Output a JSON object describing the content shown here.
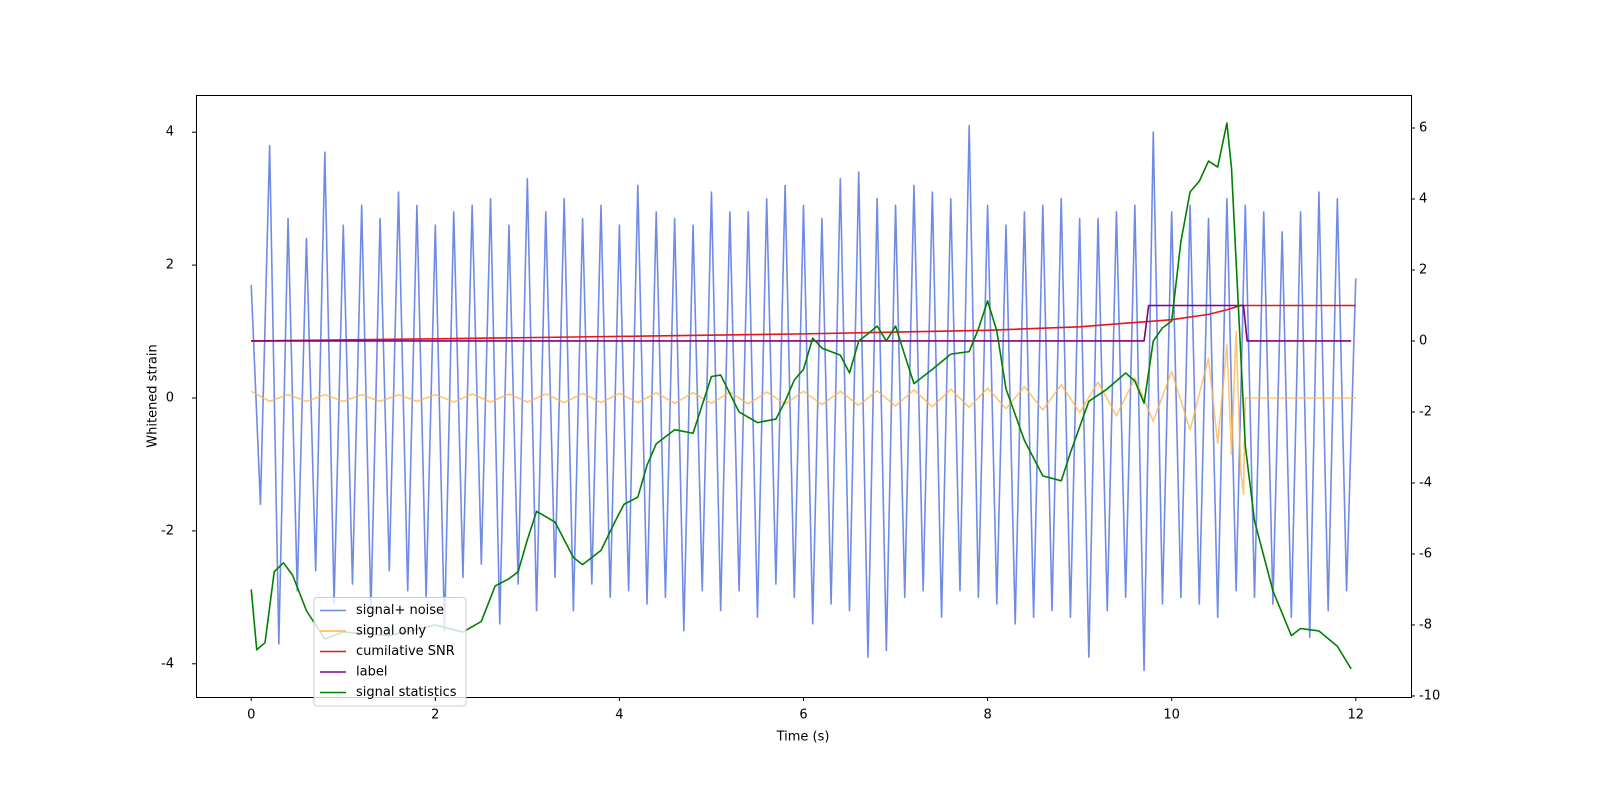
{
  "chart_data": {
    "type": "line",
    "xlabel": "Time (s)",
    "ylabel": "Whitened strain",
    "xlim": [
      -0.6,
      12.6
    ],
    "ylim": [
      -4.5,
      4.56
    ],
    "y2lim": [
      -10.03,
      6.93
    ],
    "xticks": [
      0,
      2,
      4,
      6,
      8,
      10,
      12
    ],
    "yticks": [
      -4,
      -2,
      0,
      2,
      4
    ],
    "y2ticks": [
      -10,
      -8,
      -6,
      -4,
      -2,
      0,
      2,
      4,
      6
    ],
    "legend": "lower left",
    "series": [
      {
        "name": "signal+ noise",
        "color": "#6f8be6",
        "axis": "y",
        "x": [
          0,
          0.1,
          0.2,
          0.3,
          0.4,
          0.5,
          0.6,
          0.7,
          0.8,
          0.9,
          1,
          1.1,
          1.2,
          1.3,
          1.4,
          1.5,
          1.6,
          1.7,
          1.8,
          1.9,
          2,
          2.1,
          2.2,
          2.3,
          2.4,
          2.5,
          2.6,
          2.7,
          2.8,
          2.9,
          3,
          3.1,
          3.2,
          3.3,
          3.4,
          3.5,
          3.6,
          3.7,
          3.8,
          3.9,
          4,
          4.1,
          4.2,
          4.3,
          4.4,
          4.5,
          4.6,
          4.7,
          4.8,
          4.9,
          5,
          5.1,
          5.2,
          5.3,
          5.4,
          5.5,
          5.6,
          5.7,
          5.8,
          5.9,
          6,
          6.1,
          6.2,
          6.3,
          6.4,
          6.5,
          6.6,
          6.7,
          6.8,
          6.9,
          7,
          7.1,
          7.2,
          7.3,
          7.4,
          7.5,
          7.6,
          7.7,
          7.8,
          7.9,
          8,
          8.1,
          8.2,
          8.3,
          8.4,
          8.5,
          8.6,
          8.7,
          8.8,
          8.9,
          9,
          9.1,
          9.2,
          9.3,
          9.4,
          9.5,
          9.6,
          9.7,
          9.8,
          9.9,
          10,
          10.1,
          10.2,
          10.3,
          10.4,
          10.5,
          10.6,
          10.7,
          10.8,
          10.9,
          11,
          11.1,
          11.2,
          11.3,
          11.4,
          11.5,
          11.6,
          11.7,
          11.8,
          11.9,
          12
        ],
        "values": [
          1.7,
          -1.6,
          3.8,
          -3.7,
          2.7,
          -2.9,
          2.4,
          -2.6,
          3.7,
          -3.1,
          2.6,
          -2.8,
          2.9,
          -3.2,
          2.7,
          -2.6,
          3.1,
          -2.9,
          2.9,
          -3.0,
          2.6,
          -3.5,
          2.8,
          -2.7,
          2.9,
          -2.5,
          3.0,
          -3.4,
          2.6,
          -2.8,
          3.3,
          -3.2,
          2.8,
          -2.7,
          3.0,
          -3.2,
          2.7,
          -2.8,
          2.9,
          -3.0,
          2.6,
          -2.9,
          3.2,
          -3.1,
          2.8,
          -3.0,
          2.7,
          -3.5,
          2.6,
          -2.9,
          3.1,
          -3.2,
          2.8,
          -2.9,
          2.8,
          -3.3,
          3.0,
          -2.8,
          3.2,
          -3.0,
          2.9,
          -3.4,
          2.7,
          -3.1,
          3.3,
          -3.2,
          3.4,
          -3.9,
          3.0,
          -3.8,
          2.9,
          -3.0,
          3.2,
          -2.9,
          3.1,
          -3.3,
          3.0,
          -2.9,
          4.1,
          -3.0,
          2.9,
          -3.1,
          2.6,
          -3.4,
          2.8,
          -3.3,
          2.9,
          -3.2,
          3.0,
          -3.3,
          2.7,
          -3.9,
          2.7,
          -3.2,
          2.8,
          -3.0,
          2.9,
          -4.1,
          4.0,
          -3.1,
          2.8,
          -3.0,
          2.9,
          -3.1,
          2.7,
          -3.3,
          3.0,
          -2.9,
          2.9,
          -3.0,
          2.8,
          -3.1,
          2.5,
          -3.3,
          2.8,
          -3.6,
          3.1,
          -3.2,
          3.0,
          -2.9,
          1.8
        ]
      },
      {
        "name": "signal only",
        "color": "#ffb347",
        "axis": "y",
        "x": [
          0,
          0.2,
          0.4,
          0.6,
          0.8,
          1,
          1.2,
          1.4,
          1.6,
          1.8,
          2,
          2.2,
          2.4,
          2.6,
          2.8,
          3,
          3.2,
          3.4,
          3.6,
          3.8,
          4,
          4.2,
          4.4,
          4.6,
          4.8,
          5,
          5.2,
          5.4,
          5.6,
          5.8,
          6,
          6.2,
          6.4,
          6.6,
          6.8,
          7,
          7.2,
          7.4,
          7.6,
          7.8,
          8,
          8.2,
          8.4,
          8.6,
          8.8,
          9,
          9.2,
          9.4,
          9.6,
          9.8,
          10,
          10.2,
          10.4,
          10.5,
          10.6,
          10.65,
          10.7,
          10.75,
          10.78,
          10.8,
          12
        ],
        "values": [
          0.1,
          -0.05,
          0.05,
          -0.05,
          0.05,
          -0.05,
          0.05,
          -0.05,
          0.05,
          -0.05,
          0.05,
          -0.06,
          0.06,
          -0.06,
          0.06,
          -0.06,
          0.06,
          -0.07,
          0.07,
          -0.07,
          0.07,
          -0.07,
          0.08,
          -0.08,
          0.08,
          -0.08,
          0.09,
          -0.09,
          0.09,
          -0.09,
          0.1,
          -0.1,
          0.1,
          -0.11,
          0.11,
          -0.12,
          0.12,
          -0.13,
          0.13,
          -0.14,
          0.15,
          -0.16,
          0.17,
          -0.18,
          0.2,
          -0.22,
          0.24,
          -0.27,
          0.3,
          -0.35,
          0.4,
          -0.48,
          0.6,
          -0.68,
          0.8,
          -0.85,
          1.0,
          -1.1,
          -1.45,
          0,
          0
        ]
      },
      {
        "name": "cumilative SNR",
        "color": "#e8141a",
        "axis": "y2",
        "x": [
          0,
          2,
          4,
          6,
          8,
          9,
          9.5,
          10,
          10.4,
          10.6,
          10.75,
          12
        ],
        "values": [
          0,
          0.06,
          0.13,
          0.2,
          0.3,
          0.4,
          0.5,
          0.6,
          0.75,
          0.88,
          1,
          1
        ]
      },
      {
        "name": "label",
        "color": "#800080",
        "axis": "y2",
        "x": [
          0,
          9.7,
          9.75,
          10.78,
          10.82,
          11.95
        ],
        "values": [
          0,
          0,
          1,
          1,
          0,
          0
        ]
      },
      {
        "name": "signal statistics",
        "color": "#008000",
        "axis": "y2",
        "x": [
          0,
          0.06,
          0.15,
          0.25,
          0.35,
          0.45,
          0.6,
          0.8,
          1,
          1.5,
          2,
          2.3,
          2.5,
          2.65,
          2.8,
          2.9,
          3,
          3.1,
          3.3,
          3.5,
          3.6,
          3.8,
          3.95,
          4.05,
          4.2,
          4.3,
          4.4,
          4.6,
          4.8,
          4.9,
          5,
          5.1,
          5.3,
          5.5,
          5.7,
          5.8,
          5.9,
          6,
          6.1,
          6.2,
          6.4,
          6.5,
          6.6,
          6.7,
          6.8,
          6.9,
          7,
          7.1,
          7.2,
          7.4,
          7.6,
          7.8,
          7.9,
          8,
          8.1,
          8.2,
          8.4,
          8.6,
          8.8,
          8.9,
          9.1,
          9.3,
          9.5,
          9.6,
          9.7,
          9.8,
          9.9,
          10,
          10.1,
          10.2,
          10.3,
          10.4,
          10.5,
          10.6,
          10.65,
          10.7,
          10.8,
          10.9,
          11.1,
          11.3,
          11.4,
          11.6,
          11.8,
          11.95
        ],
        "values": [
          -7,
          -8.7,
          -8.5,
          -6.5,
          -6.25,
          -6.6,
          -7.6,
          -8.4,
          -8.2,
          -8.3,
          -8,
          -8.2,
          -7.9,
          -6.9,
          -6.7,
          -6.5,
          -5.6,
          -4.8,
          -5.1,
          -6.1,
          -6.3,
          -5.9,
          -5.1,
          -4.6,
          -4.4,
          -3.5,
          -2.9,
          -2.5,
          -2.6,
          -1.8,
          -1,
          -0.96,
          -2,
          -2.3,
          -2.2,
          -1.7,
          -1.1,
          -0.8,
          0.08,
          -0.2,
          -0.4,
          -0.9,
          0,
          0.2,
          0.42,
          0,
          0.42,
          -0.4,
          -1.2,
          -0.8,
          -0.37,
          -0.3,
          0.34,
          1.13,
          0.28,
          -1.35,
          -2.8,
          -3.8,
          -3.94,
          -3.15,
          -1.7,
          -1.35,
          -0.9,
          -1.13,
          -1.75,
          0,
          0.37,
          0.56,
          2.8,
          4.2,
          4.5,
          5.07,
          4.9,
          6.14,
          4.87,
          2.25,
          -2.96,
          -5.07,
          -7.04,
          -8.3,
          -8.1,
          -8.17,
          -8.6,
          -9.24
        ]
      }
    ]
  }
}
